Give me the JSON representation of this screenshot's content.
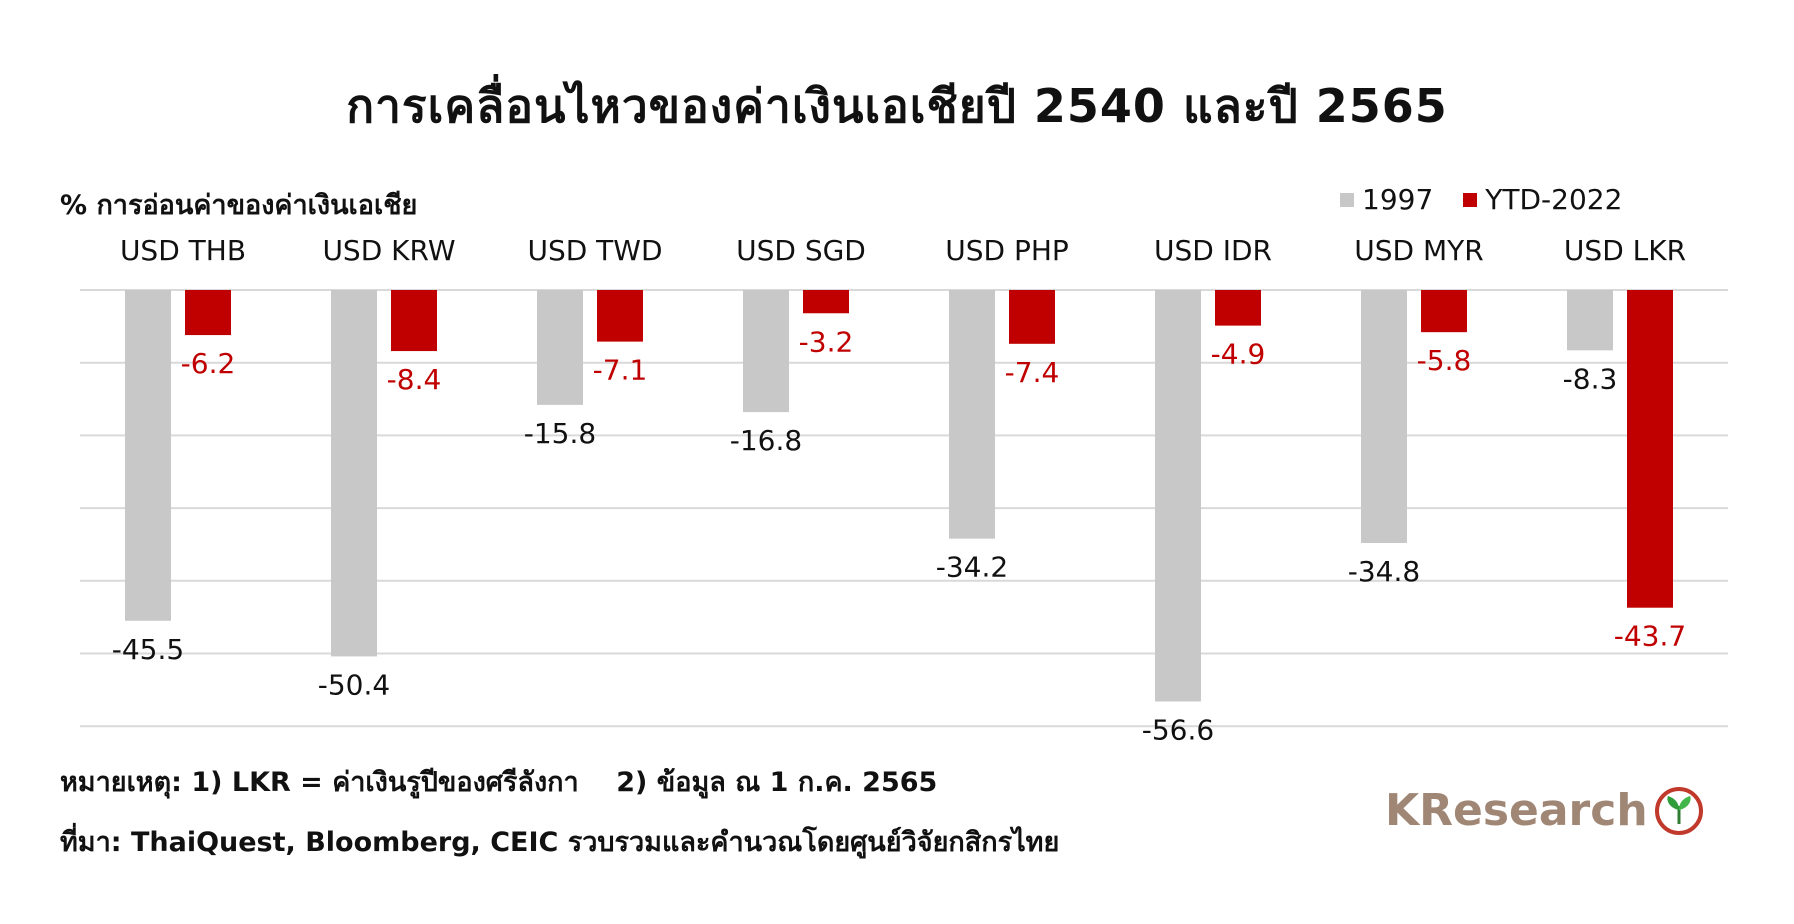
{
  "title": "การเคลื่อนไหวของค่าเงินเอเชียปี 2540 และปี 2565",
  "y_axis_note": "% การอ่อนค่าของค่าเงินเอเชีย",
  "colors": {
    "series_1997": "#c8c8c8",
    "series_2022": "#c00000",
    "grid": "#d9d9d9"
  },
  "chart_data": {
    "type": "bar",
    "categories": [
      "USD THB",
      "USD KRW",
      "USD TWD",
      "USD SGD",
      "USD PHP",
      "USD IDR",
      "USD MYR",
      "USD LKR"
    ],
    "series": [
      {
        "name": "1997",
        "values": [
          -45.5,
          -50.4,
          -15.8,
          -16.8,
          -34.2,
          -56.6,
          -34.8,
          -8.3
        ]
      },
      {
        "name": "YTD-2022",
        "values": [
          -6.2,
          -8.4,
          -7.1,
          -3.2,
          -7.4,
          -4.9,
          -5.8,
          -43.7
        ]
      }
    ],
    "ylim": [
      -60,
      0
    ],
    "legend_position": "top-right",
    "grid": true
  },
  "footnote": "หมายเหตุ: 1) LKR = ค่าเงินรูปีของศรีลังกา    2) ข้อมูล ณ 1 ก.ค. 2565",
  "source": "ที่มา: ThaiQuest, Bloomberg, CEIC รวบรวมและคำนวณโดยศูนย์วิจัยกสิกรไทย",
  "logo_text": "KResearch"
}
